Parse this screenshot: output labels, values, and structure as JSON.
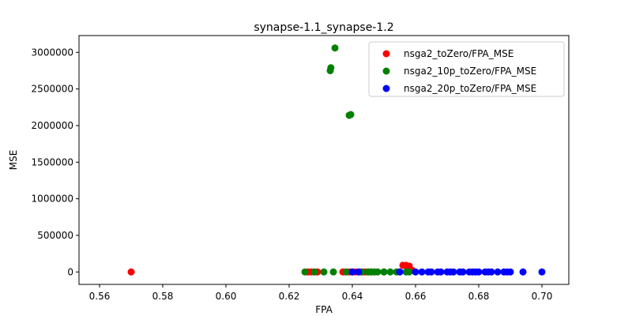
{
  "chart_data": {
    "type": "scatter",
    "title": "synapse-1.1_synapse-1.2",
    "xlabel": "FPA",
    "ylabel": "MSE",
    "xlim": [
      0.5535,
      0.7085
    ],
    "ylim": [
      -170000,
      3230000
    ],
    "xticks": [
      0.56,
      0.58,
      0.6,
      0.62,
      0.64,
      0.66,
      0.68,
      0.7
    ],
    "xtick_labels": [
      "0.56",
      "0.58",
      "0.60",
      "0.62",
      "0.64",
      "0.66",
      "0.68",
      "0.70"
    ],
    "yticks": [
      0,
      500000,
      1000000,
      1500000,
      2000000,
      2500000,
      3000000
    ],
    "ytick_labels": [
      "0",
      "500000",
      "1000000",
      "1500000",
      "2000000",
      "2500000",
      "3000000"
    ],
    "grid": false,
    "legend_position": "top-right",
    "series": [
      {
        "name": "nsga2_toZero/FPA_MSE",
        "color": "#ff0000",
        "points": [
          [
            0.57,
            0
          ],
          [
            0.626,
            0
          ],
          [
            0.627,
            0
          ],
          [
            0.628,
            0
          ],
          [
            0.629,
            0
          ],
          [
            0.637,
            0
          ],
          [
            0.638,
            0
          ],
          [
            0.639,
            0
          ],
          [
            0.641,
            0
          ],
          [
            0.643,
            0
          ],
          [
            0.644,
            0
          ],
          [
            0.645,
            0
          ],
          [
            0.646,
            0
          ],
          [
            0.65,
            0
          ],
          [
            0.656,
            90000
          ],
          [
            0.657,
            90000
          ],
          [
            0.658,
            80000
          ],
          [
            0.658,
            40000
          ],
          [
            0.659,
            20000
          ]
        ]
      },
      {
        "name": "nsga2_10p_toZero/FPA_MSE",
        "color": "#008000",
        "points": [
          [
            0.6345,
            3060000
          ],
          [
            0.6332,
            2790000
          ],
          [
            0.633,
            2750000
          ],
          [
            0.6395,
            2150000
          ],
          [
            0.639,
            2140000
          ],
          [
            0.625,
            0
          ],
          [
            0.628,
            0
          ],
          [
            0.631,
            0
          ],
          [
            0.634,
            0
          ],
          [
            0.638,
            0
          ],
          [
            0.64,
            0
          ],
          [
            0.643,
            0
          ],
          [
            0.645,
            0
          ],
          [
            0.646,
            0
          ],
          [
            0.647,
            0
          ],
          [
            0.648,
            0
          ],
          [
            0.65,
            0
          ],
          [
            0.652,
            0
          ],
          [
            0.654,
            0
          ],
          [
            0.657,
            0
          ],
          [
            0.658,
            0
          ]
        ]
      },
      {
        "name": "nsga2_20p_toZero/FPA_MSE",
        "color": "#0000ff",
        "points": [
          [
            0.64,
            0
          ],
          [
            0.642,
            0
          ],
          [
            0.655,
            0
          ],
          [
            0.66,
            0
          ],
          [
            0.662,
            0
          ],
          [
            0.664,
            0
          ],
          [
            0.665,
            0
          ],
          [
            0.667,
            0
          ],
          [
            0.668,
            0
          ],
          [
            0.67,
            0
          ],
          [
            0.671,
            0
          ],
          [
            0.672,
            0
          ],
          [
            0.674,
            0
          ],
          [
            0.675,
            0
          ],
          [
            0.677,
            0
          ],
          [
            0.678,
            0
          ],
          [
            0.679,
            0
          ],
          [
            0.68,
            0
          ],
          [
            0.682,
            0
          ],
          [
            0.683,
            0
          ],
          [
            0.684,
            0
          ],
          [
            0.686,
            0
          ],
          [
            0.688,
            0
          ],
          [
            0.689,
            0
          ],
          [
            0.69,
            0
          ],
          [
            0.694,
            0
          ],
          [
            0.7,
            0
          ]
        ]
      }
    ]
  }
}
